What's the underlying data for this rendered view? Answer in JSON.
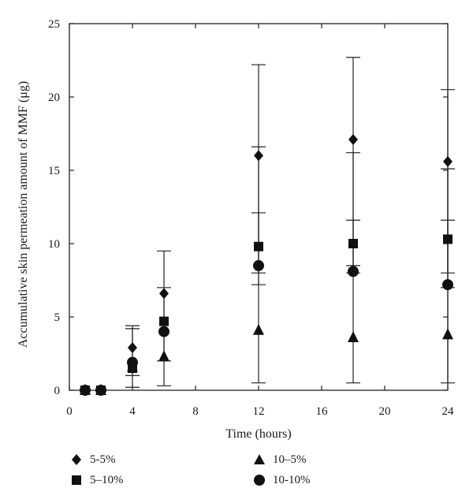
{
  "chart_data": {
    "type": "scatter",
    "xlabel": "Time (hours)",
    "ylabel": "Accumulative skin permeation amount of MMF (μg)",
    "xlim": [
      0,
      24
    ],
    "ylim": [
      0,
      25
    ],
    "xticks": [
      0,
      4,
      8,
      12,
      16,
      20,
      24
    ],
    "yticks": [
      0,
      5,
      10,
      15,
      20,
      25
    ],
    "grid": false,
    "legend_position": "bottom",
    "series": [
      {
        "name": "5-5%",
        "marker": "diamond",
        "x": [
          1,
          2,
          4,
          6,
          12,
          18,
          24
        ],
        "y": [
          0,
          0,
          2.9,
          6.6,
          16.0,
          17.1,
          15.6
        ]
      },
      {
        "name": "5–10%",
        "marker": "square",
        "x": [
          1,
          2,
          4,
          6,
          12,
          18,
          24
        ],
        "y": [
          0,
          0,
          1.5,
          4.7,
          9.8,
          10.0,
          10.3
        ]
      },
      {
        "name": "10–5%",
        "marker": "triangle",
        "x": [
          1,
          2,
          4,
          6,
          12,
          18,
          24
        ],
        "y": [
          0,
          0,
          1.6,
          2.3,
          4.1,
          3.6,
          3.8
        ]
      },
      {
        "name": "10-10%",
        "marker": "circle",
        "x": [
          1,
          2,
          4,
          6,
          12,
          18,
          24
        ],
        "y": [
          0,
          0,
          1.9,
          4.0,
          8.5,
          8.1,
          7.2
        ]
      }
    ],
    "error_bars": [
      {
        "x": 4,
        "low": 0.2,
        "high": 4.4
      },
      {
        "x": 4,
        "low": 1.0,
        "high": 4.2
      },
      {
        "x": 6,
        "low": 0.3,
        "high": 9.5
      },
      {
        "x": 6,
        "low": 2.0,
        "high": 7.0
      },
      {
        "x": 12,
        "low": 0.5,
        "high": 22.2
      },
      {
        "x": 12,
        "low": 7.2,
        "high": 16.6
      },
      {
        "x": 12,
        "low": 8.0,
        "high": 12.1
      },
      {
        "x": 18,
        "low": 0.5,
        "high": 22.7
      },
      {
        "x": 18,
        "low": 8.0,
        "high": 16.2
      },
      {
        "x": 18,
        "low": 8.5,
        "high": 11.6
      },
      {
        "x": 24,
        "low": 0.5,
        "high": 20.5
      },
      {
        "x": 24,
        "low": 7.0,
        "high": 15.1
      },
      {
        "x": 24,
        "low": 8.0,
        "high": 11.6
      }
    ]
  }
}
